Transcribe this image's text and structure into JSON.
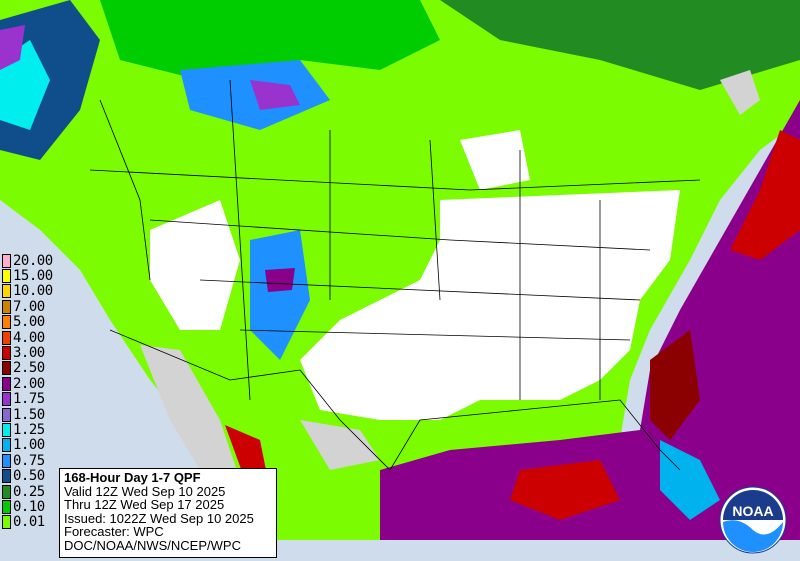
{
  "map": {
    "ocean_color": "#cfdcec",
    "outside_land_color": "#d3d3d3",
    "no_precip_color": "#ffffff"
  },
  "legend": {
    "items": [
      {
        "label": "20.00",
        "color": "#ffaec9"
      },
      {
        "label": "15.00",
        "color": "#ffff00"
      },
      {
        "label": "10.00",
        "color": "#ffd700"
      },
      {
        "label": "7.00",
        "color": "#cd8500"
      },
      {
        "label": "5.00",
        "color": "#ff7f00"
      },
      {
        "label": "4.00",
        "color": "#ee4000"
      },
      {
        "label": "3.00",
        "color": "#cd0000"
      },
      {
        "label": "2.50",
        "color": "#8b0000"
      },
      {
        "label": "2.00",
        "color": "#8b008b"
      },
      {
        "label": "1.75",
        "color": "#9a32cd"
      },
      {
        "label": "1.50",
        "color": "#8968cd"
      },
      {
        "label": "1.25",
        "color": "#00eeee"
      },
      {
        "label": "1.00",
        "color": "#00b2ee"
      },
      {
        "label": "0.75",
        "color": "#1e90ff"
      },
      {
        "label": "0.50",
        "color": "#104e8b"
      },
      {
        "label": "0.25",
        "color": "#228b22"
      },
      {
        "label": "0.10",
        "color": "#00cd00"
      },
      {
        "label": "0.01",
        "color": "#7cfc00"
      }
    ]
  },
  "info": {
    "title": "168-Hour Day 1-7 QPF",
    "valid": "Valid 12Z Wed Sep 10 2025",
    "thru": "Thru 12Z Wed Sep 17 2025",
    "issued": "Issued: 1022Z Wed Sep 10 2025",
    "forecaster": "Forecaster: WPC",
    "agency": "DOC/NOAA/NWS/NCEP/WPC"
  },
  "logo": {
    "text": "NOAA"
  }
}
